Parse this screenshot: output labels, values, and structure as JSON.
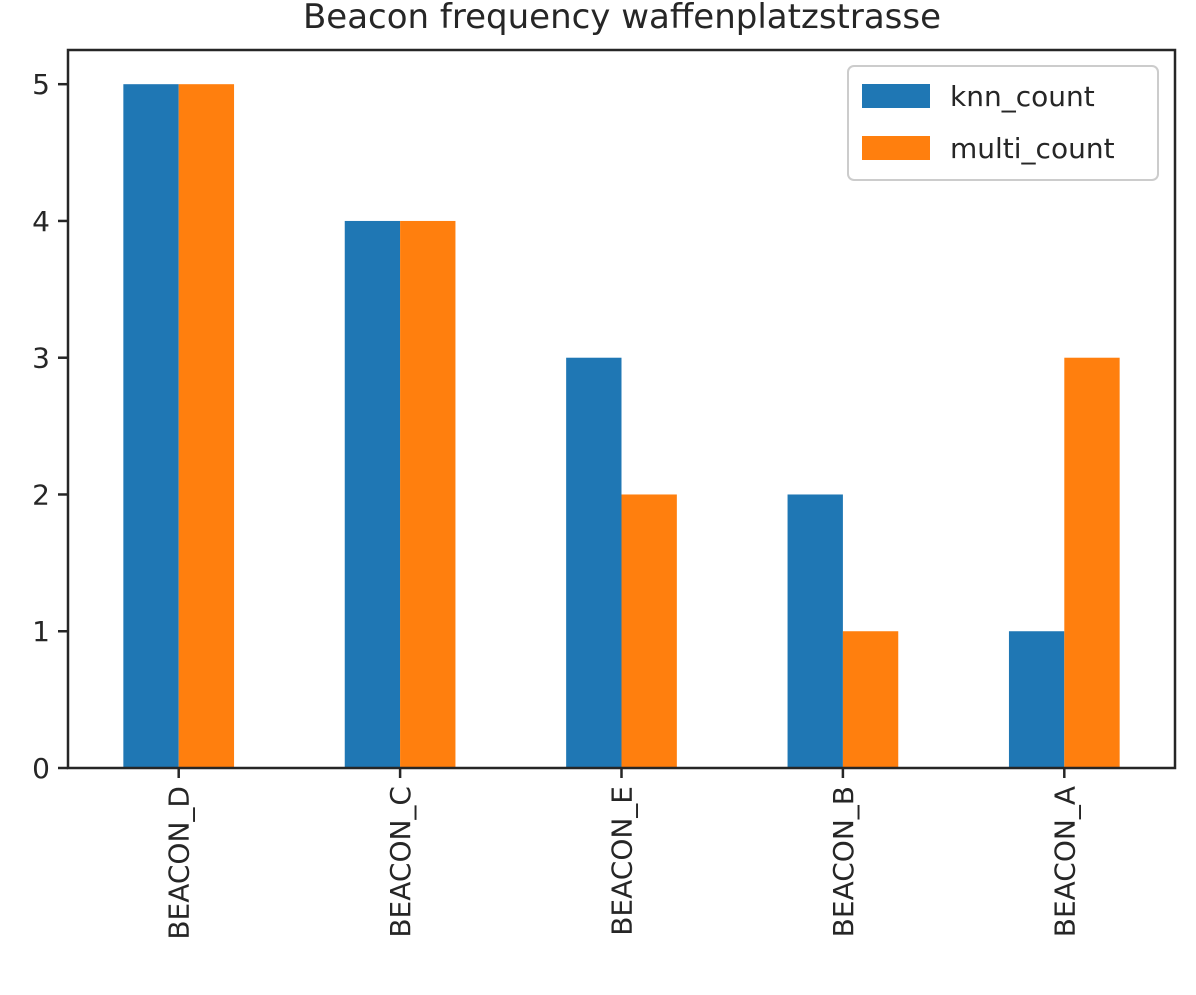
{
  "chart_data": {
    "type": "bar",
    "title": "Beacon frequency waffenplatzstrasse",
    "xlabel": "",
    "ylabel": "",
    "categories": [
      "BEACON_D",
      "BEACON_C",
      "BEACON_E",
      "BEACON_B",
      "BEACON_A"
    ],
    "series": [
      {
        "name": "knn_count",
        "values": [
          5,
          4,
          3,
          2,
          1
        ],
        "color": "#1f77b4"
      },
      {
        "name": "multi_count",
        "values": [
          5,
          4,
          2,
          1,
          3
        ],
        "color": "#ff7f0e"
      }
    ],
    "ylim": [
      0,
      5.25
    ],
    "yticks": [
      "0",
      "1",
      "2",
      "3",
      "4",
      "5"
    ],
    "grid": false,
    "legend_position": "top-right"
  }
}
